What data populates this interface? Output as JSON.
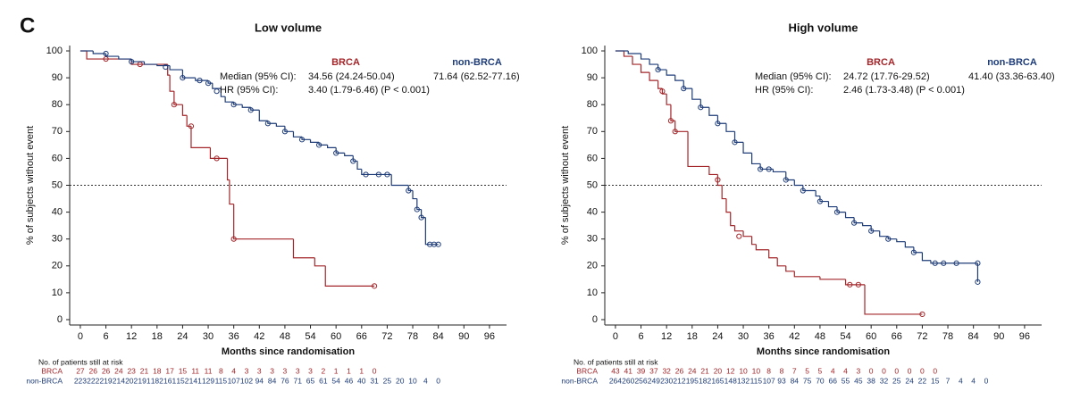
{
  "panel_label": "C",
  "chart_data": [
    {
      "type": "line",
      "step": true,
      "title": "Low volume",
      "x_label": "Months since randomisation",
      "y_label": "% of subjects without event",
      "xlim": [
        -2.5,
        100
      ],
      "ylim": [
        -2,
        102
      ],
      "xticks": [
        0,
        6,
        12,
        18,
        24,
        30,
        36,
        42,
        48,
        54,
        60,
        66,
        72,
        78,
        84,
        90,
        96
      ],
      "yticks": [
        0,
        10,
        20,
        30,
        40,
        50,
        60,
        70,
        80,
        90,
        100
      ],
      "reference_line": 50,
      "series": [
        {
          "name": "BRCA",
          "color": "#a3262a",
          "x": [
            0,
            1.5,
            12,
            20.5,
            21,
            22,
            24,
            25,
            26,
            30.5,
            34.5,
            35,
            36,
            50,
            55,
            57.5,
            69
          ],
          "values": [
            100,
            97,
            95,
            91,
            85,
            80,
            76,
            72,
            64,
            60,
            52,
            43,
            30,
            23,
            20,
            12.5,
            12.5
          ],
          "censored_x": [
            6,
            14,
            22,
            26,
            32,
            36,
            69
          ],
          "censored_values": [
            97,
            95,
            80,
            72,
            60,
            30,
            12.5
          ]
        },
        {
          "name": "non-BRCA",
          "color": "#1e3c78",
          "x": [
            0,
            3,
            6,
            9,
            12,
            15,
            18,
            21,
            24,
            27,
            30,
            31,
            33,
            34,
            36,
            38,
            40,
            42,
            44,
            46,
            48,
            50,
            52,
            54,
            56,
            58,
            60,
            62,
            64,
            65,
            66,
            72,
            73,
            77,
            78,
            79,
            80,
            81,
            84
          ],
          "values": [
            100,
            99,
            98,
            97,
            96,
            95,
            94.5,
            93,
            90,
            89,
            88,
            86,
            83,
            81,
            80,
            79,
            78,
            74,
            73,
            72,
            70,
            68,
            67,
            66,
            65,
            64,
            62,
            61,
            59,
            56,
            54,
            54,
            50,
            48,
            45,
            41,
            38,
            28,
            28
          ],
          "censored_x": [
            6,
            12,
            20,
            24,
            28,
            30,
            32,
            36,
            40,
            44,
            48,
            52,
            56,
            60,
            64,
            67,
            70,
            72,
            77,
            79,
            80,
            82,
            83,
            84
          ],
          "censored_values": [
            99,
            96,
            94,
            90,
            89,
            88,
            85,
            80,
            78,
            73,
            70,
            67,
            65,
            62,
            59,
            54,
            54,
            54,
            48,
            41,
            38,
            28,
            28,
            28
          ]
        }
      ],
      "annotations": {
        "median_label": "Median (95% CI):",
        "hr_label": "HR (95% CI):",
        "median_values": [
          "34.56 (24.24-50.04)",
          "71.64 (62.52-77.16)"
        ],
        "hr_value": "3.40 (1.79-6.46) (P < 0.001)"
      },
      "at_risk": {
        "title": "No. of patients still at risk",
        "times": [
          0,
          3,
          6,
          9,
          12,
          15,
          18,
          21,
          24,
          27,
          30,
          33,
          36,
          39,
          42,
          45,
          48,
          51,
          54,
          57,
          60,
          63,
          66,
          69,
          72,
          75,
          78,
          81,
          84
        ],
        "rows": [
          {
            "name": "BRCA",
            "values": [
              27,
              26,
              26,
              24,
              23,
              21,
              18,
              17,
              15,
              11,
              11,
              8,
              4,
              3,
              3,
              3,
              3,
              3,
              3,
              2,
              1,
              1,
              1,
              0
            ]
          },
          {
            "name": "non-BRCA",
            "values": [
              223,
              222,
              219,
              214,
              202,
              191,
              182,
              161,
              152,
              141,
              129,
              115,
              107,
              102,
              94,
              84,
              76,
              71,
              65,
              61,
              54,
              46,
              40,
              31,
              25,
              20,
              10,
              4,
              0
            ]
          }
        ]
      }
    },
    {
      "type": "line",
      "step": true,
      "title": "High volume",
      "x_label": "Months since randomisation",
      "y_label": "% of subjects without event",
      "xlim": [
        -2.5,
        100
      ],
      "ylim": [
        -2,
        102
      ],
      "xticks": [
        0,
        6,
        12,
        18,
        24,
        30,
        36,
        42,
        48,
        54,
        60,
        66,
        72,
        78,
        84,
        90,
        96
      ],
      "yticks": [
        0,
        10,
        20,
        30,
        40,
        50,
        60,
        70,
        80,
        90,
        100
      ],
      "reference_line": 50,
      "series": [
        {
          "name": "BRCA",
          "color": "#a3262a",
          "x": [
            0,
            2,
            4,
            6,
            8,
            10,
            11,
            12,
            13,
            14,
            17,
            22,
            24,
            25,
            26,
            27,
            28,
            30,
            32,
            33,
            36,
            38,
            40,
            42,
            48,
            54,
            58.5,
            72
          ],
          "values": [
            100,
            98,
            95,
            92,
            89,
            86,
            84,
            80,
            74,
            70,
            57,
            54,
            50,
            45,
            40,
            35,
            33,
            31,
            28,
            26,
            23,
            20,
            18,
            16,
            15,
            13,
            2,
            2
          ],
          "censored_x": [
            11,
            13,
            14,
            24,
            29,
            55,
            57,
            72
          ],
          "censored_values": [
            85,
            74,
            70,
            52,
            31,
            13,
            13,
            2
          ]
        },
        {
          "name": "non-BRCA",
          "color": "#1e3c78",
          "x": [
            0,
            3,
            6,
            8,
            10,
            12,
            14,
            16,
            18,
            20,
            22,
            24,
            26,
            28,
            30,
            32,
            34,
            37,
            40,
            42,
            44,
            47,
            48,
            50,
            52,
            54,
            56,
            58,
            60,
            62,
            64,
            66,
            68,
            70,
            72,
            74,
            85
          ],
          "values": [
            100,
            99,
            97,
            95,
            93,
            91,
            89,
            86,
            82,
            79,
            76,
            73,
            70,
            66,
            62,
            58,
            56,
            55,
            52,
            50,
            48,
            46,
            44,
            42,
            40,
            38,
            36,
            35,
            33,
            31,
            30,
            29,
            27,
            25,
            22,
            21,
            14
          ],
          "censored_x": [
            10,
            16,
            20,
            24,
            28,
            34,
            36,
            40,
            44,
            48,
            52,
            56,
            60,
            64,
            70,
            75,
            77,
            80,
            85,
            85
          ],
          "censored_values": [
            93,
            86,
            79,
            73,
            66,
            56,
            56,
            52,
            48,
            44,
            40,
            36,
            33,
            30,
            25,
            21,
            21,
            21,
            21,
            14
          ]
        }
      ],
      "annotations": {
        "median_label": "Median (95% CI):",
        "hr_label": "HR (95% CI):",
        "median_values": [
          "24.72 (17.76-29.52)",
          "41.40 (33.36-63.40)"
        ],
        "hr_value": "2.46 (1.73-3.48) (P < 0.001)"
      },
      "at_risk": {
        "title": "No. of patients still at risk",
        "times": [
          0,
          3,
          6,
          9,
          12,
          15,
          18,
          21,
          24,
          27,
          30,
          33,
          36,
          39,
          42,
          45,
          48,
          51,
          54,
          57,
          60,
          63,
          66,
          69,
          72,
          75,
          78,
          81,
          84,
          87
        ],
        "rows": [
          {
            "name": "BRCA",
            "values": [
              43,
              41,
              39,
              37,
              32,
              26,
              24,
              21,
              20,
              12,
              10,
              10,
              8,
              8,
              7,
              5,
              5,
              4,
              4,
              3,
              0,
              0,
              0,
              0,
              0,
              0
            ]
          },
          {
            "name": "non-BRCA",
            "values": [
              264,
              260,
              256,
              249,
              230,
              212,
              195,
              182,
              165,
              148,
              132,
              115,
              107,
              93,
              84,
              75,
              70,
              66,
              55,
              45,
              38,
              32,
              25,
              24,
              22,
              15,
              7,
              4,
              4,
              0
            ]
          }
        ]
      }
    }
  ]
}
